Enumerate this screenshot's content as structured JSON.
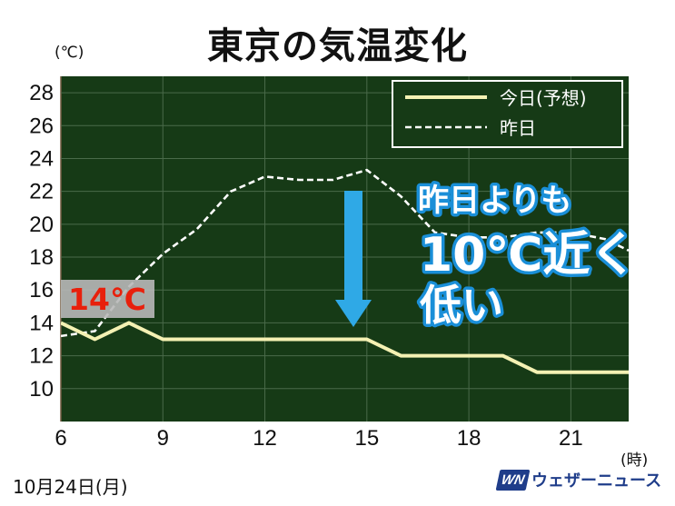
{
  "title": "東京の気温変化",
  "unit_y": "(℃)",
  "unit_x": "(時)",
  "date": "10月24日(月)",
  "logo": {
    "mark": "WN",
    "text": "ウェザーニュース",
    "icon": "weathernews-logo"
  },
  "start_label": "14℃",
  "annotation": {
    "line1": "昨日よりも",
    "line2": "10℃近く",
    "line3": "低い"
  },
  "colors": {
    "background": "#163a16",
    "grid": "#4a6a4a",
    "today": "#f4f1b3",
    "yesterday": "#ffffff",
    "arrow": "#2fa9e6",
    "annotation_text": "#ffffff",
    "annotation_outline": "#1a8fd8",
    "start_label_bg": "#b8b8b8",
    "start_label_text": "#e8200c"
  },
  "chart_data": {
    "type": "line",
    "title": "東京の気温変化",
    "xlabel": "(時)",
    "ylabel": "(℃)",
    "xlim": [
      6,
      22.7
    ],
    "ylim": [
      8,
      29
    ],
    "x_ticks": [
      6,
      9,
      12,
      15,
      18,
      21
    ],
    "y_ticks": [
      10,
      12,
      14,
      16,
      18,
      20,
      22,
      24,
      26,
      28
    ],
    "grid": true,
    "legend_position": "top-right",
    "series": [
      {
        "name": "今日(予想)",
        "style": "solid",
        "x": [
          6,
          7,
          8,
          9,
          10,
          11,
          12,
          13,
          14,
          15,
          16,
          17,
          18,
          19,
          20,
          21,
          22,
          22.7
        ],
        "y": [
          14,
          13,
          14,
          13,
          13,
          13,
          13,
          13,
          13,
          13,
          12,
          12,
          12,
          12,
          11,
          11,
          11,
          11
        ]
      },
      {
        "name": "昨日",
        "style": "dashed",
        "x": [
          6,
          7,
          8,
          9,
          10,
          11,
          12,
          13,
          14,
          15,
          16,
          17,
          18,
          19,
          20,
          21,
          22,
          22.7
        ],
        "y": [
          13.2,
          13.5,
          16.2,
          18.2,
          19.7,
          22.0,
          22.9,
          22.7,
          22.7,
          23.3,
          21.7,
          19.5,
          19.2,
          19.2,
          19.5,
          19.5,
          19.1,
          18.4
        ]
      }
    ]
  }
}
